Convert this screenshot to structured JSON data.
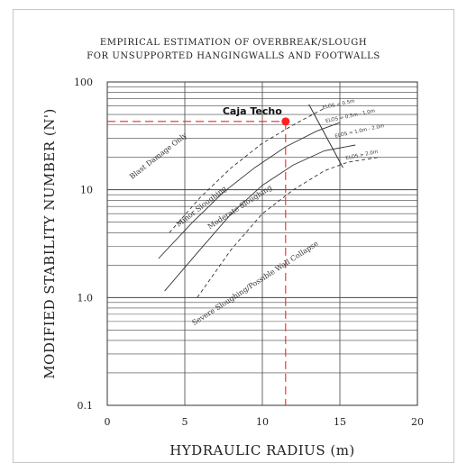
{
  "chart_data": {
    "type": "line",
    "title_lines": [
      "EMPIRICAL ESTIMATION OF OVERBREAK/SLOUGH",
      "FOR UNSUPPORTED HANGINGWALLS AND FOOTWALLS"
    ],
    "xlabel": "HYDRAULIC RADIUS (m)",
    "ylabel": "MODIFIED STABILITY NUMBER (N')",
    "xlim": [
      0,
      20
    ],
    "ylim": [
      0.1,
      100
    ],
    "yscale": "log",
    "grid": true,
    "x_ticks": [
      {
        "value": 0,
        "label": "0"
      },
      {
        "value": 5,
        "label": "5"
      },
      {
        "value": 10,
        "label": "10"
      },
      {
        "value": 15,
        "label": "15"
      },
      {
        "value": 20,
        "label": "20"
      }
    ],
    "y_ticks": [
      {
        "value": 0.1,
        "label": "0.1"
      },
      {
        "value": 1,
        "label": "1.0"
      },
      {
        "value": 10,
        "label": "10"
      },
      {
        "value": 100,
        "label": "100"
      }
    ],
    "series": [
      {
        "name": "zone-boundary-1",
        "style": "dashed",
        "x": [
          4.0,
          6.0,
          8.0,
          10.0,
          12.0,
          14.0
        ],
        "y": [
          4.0,
          8.5,
          16.0,
          27.0,
          40.0,
          57.0
        ]
      },
      {
        "name": "zone-boundary-2",
        "style": "solid",
        "x": [
          3.3,
          5.5,
          7.5,
          9.5,
          11.5,
          13.5,
          15.0
        ],
        "y": [
          2.3,
          5.0,
          9.5,
          16.0,
          25.0,
          35.0,
          42.0
        ]
      },
      {
        "name": "zone-boundary-3",
        "style": "solid",
        "x": [
          3.7,
          6.0,
          8.0,
          10.0,
          12.0,
          14.0,
          16.0
        ],
        "y": [
          1.15,
          2.8,
          6.0,
          11.0,
          17.0,
          23.0,
          26.0
        ]
      },
      {
        "name": "zone-boundary-4",
        "style": "dashed",
        "x": [
          5.8,
          8.0,
          10.0,
          12.0,
          14.0,
          15.5,
          17.5
        ],
        "y": [
          1.0,
          2.8,
          6.0,
          10.0,
          15.0,
          18.0,
          20.0
        ]
      }
    ],
    "zone_labels": [
      {
        "text": "Blast Damage Only",
        "x": 1.6,
        "y": 12.5,
        "angle": -38
      },
      {
        "text": "Minor Sloughing",
        "x": 4.6,
        "y": 4.5,
        "angle": -38
      },
      {
        "text": "Moderate Sloughing",
        "x": 6.6,
        "y": 4.3,
        "angle": -33
      },
      {
        "text": "Severe Sloughing/Possible Wall Collapse",
        "x": 5.6,
        "y": 0.55,
        "angle": -33
      }
    ],
    "elos_labels": [
      {
        "text": "ELOS < 0.5m",
        "x": 13.9,
        "y": 56.0,
        "angle": -12
      },
      {
        "text": "ELOS = 0.5m - 1.0m",
        "x": 14.1,
        "y": 42.0,
        "angle": -12
      },
      {
        "text": "ELOS = 1.0m - 2.0m",
        "x": 14.7,
        "y": 30.5,
        "angle": -12
      },
      {
        "text": "ELOS > 2.0m",
        "x": 15.4,
        "y": 19.0,
        "angle": -12
      }
    ],
    "highlight_point": {
      "label": "Caja Techo",
      "x": 11.5,
      "y": 43.0,
      "color": "#ff2222"
    }
  }
}
